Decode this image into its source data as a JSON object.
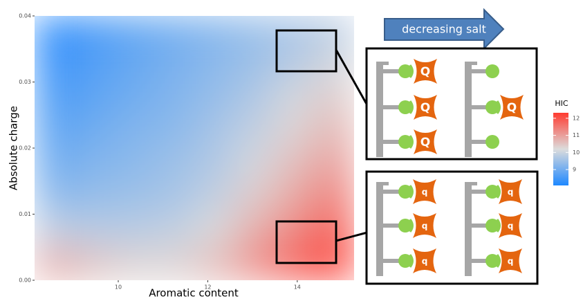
{
  "chart_data": {
    "type": "heatmap",
    "xlabel": "Aromatic content",
    "ylabel": "Absolute charge",
    "xlim": [
      8.13,
      15.27
    ],
    "ylim": [
      0,
      0.04
    ],
    "xticks": [
      10,
      12,
      14
    ],
    "yticks": [
      {
        "value": 0,
        "label": "0.00"
      },
      0.01,
      0.02,
      0.03,
      0.04
    ],
    "x": [
      8.58,
      9.47,
      10.36,
      11.25,
      12.15,
      13.04,
      13.93,
      14.82
    ],
    "y": [
      0.0375,
      0.0325,
      0.0275,
      0.0225,
      0.0175,
      0.0125,
      0.0075,
      0.0025
    ],
    "z": [
      [
        8.2,
        8.5,
        8.8,
        9.0,
        9.2,
        9.4,
        9.6,
        9.8
      ],
      [
        8.4,
        8.7,
        8.9,
        9.1,
        9.3,
        9.5,
        9.8,
        10.1
      ],
      [
        8.6,
        8.8,
        9.0,
        9.2,
        9.4,
        9.7,
        10.1,
        10.4
      ],
      [
        8.8,
        9.0,
        9.2,
        9.3,
        9.6,
        9.9,
        10.3,
        10.7
      ],
      [
        9.0,
        9.2,
        9.3,
        9.5,
        9.7,
        10.1,
        10.6,
        11.0
      ],
      [
        9.3,
        9.4,
        9.5,
        9.6,
        9.9,
        10.4,
        10.9,
        11.4
      ],
      [
        9.9,
        9.8,
        9.8,
        9.9,
        10.2,
        10.8,
        11.3,
        11.8
      ],
      [
        10.8,
        10.5,
        10.3,
        10.3,
        10.6,
        11.2,
        11.8,
        12.2
      ]
    ],
    "colors": [
      "#1e88ff",
      "#dcdcdc",
      "#ff3b30"
    ],
    "zlim": [
      8.07,
      12.32
    ],
    "colorbar_title": "HIC",
    "colorbar_ticks": [
      9,
      10,
      11,
      12
    ],
    "arrow_label": "decreasing salt",
    "top_panel_label": "Q",
    "bottom_panel_label": "q"
  }
}
